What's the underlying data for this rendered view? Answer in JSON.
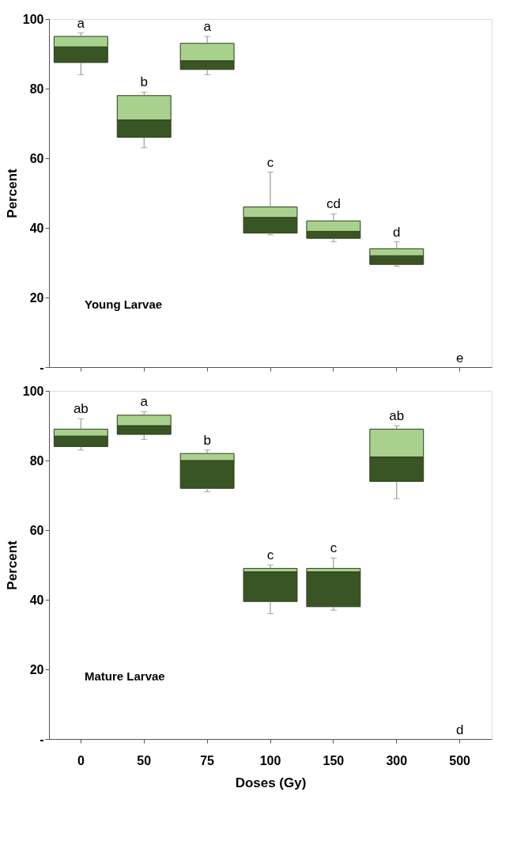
{
  "chart_data": [
    {
      "type": "box",
      "ylabel": "Percent",
      "categories": [
        "0",
        "50",
        "75",
        "100",
        "150",
        "300",
        "500"
      ],
      "boxes": [
        {
          "low": 84,
          "q1": 87.5,
          "median": 92,
          "q3": 95,
          "high": 96
        },
        {
          "low": 63,
          "q1": 66,
          "median": 71,
          "q3": 78,
          "high": 79
        },
        {
          "low": 84,
          "q1": 85.5,
          "median": 88,
          "q3": 93,
          "high": 95
        },
        {
          "low": 38,
          "q1": 38.5,
          "median": 43,
          "q3": 46,
          "high": 56
        },
        {
          "low": 36,
          "q1": 37,
          "median": 39,
          "q3": 42,
          "high": 44
        },
        {
          "low": 29,
          "q1": 29.5,
          "median": 32,
          "q3": 34,
          "high": 36
        },
        null
      ],
      "colors": [
        [
          "#3a5524",
          "#a9d18e"
        ],
        [
          "#3a5524",
          "#a9d18e"
        ],
        [
          "#3a5524",
          "#a9d18e"
        ],
        [
          "#3a5524",
          "#a9d18e"
        ],
        [
          "#3a5524",
          "#a9d18e"
        ],
        [
          "#3a5524",
          "#a9d18e"
        ],
        [
          "#3a5524",
          "#a9d18e"
        ]
      ],
      "ylim": [
        0,
        100
      ],
      "yticks": [
        {
          "value": 0,
          "label": "-"
        },
        20,
        40,
        60,
        80,
        100
      ],
      "tick_labels": "y",
      "grid": false,
      "annotations": [
        "Young Larvae",
        "e",
        {
          "text": "a",
          "x": "0",
          "y": 96
        },
        {
          "text": "b",
          "x": "50",
          "y": 79
        },
        {
          "text": "a",
          "x": "75",
          "y": 95
        },
        {
          "text": "c",
          "x": "100",
          "y": 56
        },
        {
          "text": "cd",
          "x": "150",
          "y": 44
        },
        {
          "text": "d",
          "x": "300",
          "y": 36
        }
      ]
    },
    {
      "type": "box",
      "ylabel": "Percent",
      "xlabel": "Doses (Gy)",
      "categories": [
        "0",
        "50",
        "75",
        "100",
        "150",
        "300",
        "500"
      ],
      "boxes": [
        {
          "low": 83,
          "q1": 84,
          "median": 87,
          "q3": 89,
          "high": 92
        },
        {
          "low": 86,
          "q1": 87.5,
          "median": 90,
          "q3": 93,
          "high": 94
        },
        {
          "low": 71,
          "q1": 72,
          "median": 80,
          "q3": 82,
          "high": 83
        },
        {
          "low": 36,
          "q1": 39.5,
          "median": 48,
          "q3": 49,
          "high": 50
        },
        {
          "low": 37,
          "q1": 38,
          "median": 48,
          "q3": 49,
          "high": 52
        },
        {
          "low": 69,
          "q1": 74,
          "median": 81,
          "q3": 89,
          "high": 90
        },
        null
      ],
      "colors": [
        [
          "#3a5524",
          "#a9d18e"
        ],
        [
          "#3a5524",
          "#a9d18e"
        ],
        [
          "#3a5524",
          "#a9d18e"
        ],
        [
          "#3a5524",
          "#a9d18e"
        ],
        [
          "#3a5524",
          "#a9d18e"
        ],
        [
          "#3a5524",
          "#a9d18e"
        ],
        [
          "#3a5524",
          "#a9d18e"
        ]
      ],
      "ylim": [
        0,
        100
      ],
      "yticks": [
        {
          "value": 0,
          "label": "-"
        },
        20,
        40,
        60,
        80,
        100
      ],
      "grid": false,
      "annotations": [
        "Mature Larvae",
        "d",
        {
          "text": "ab",
          "x": "0",
          "y": 92
        },
        {
          "text": "a",
          "x": "50",
          "y": 94
        },
        {
          "text": "b",
          "x": "75",
          "y": 83
        },
        {
          "text": "c",
          "x": "100",
          "y": 50
        },
        {
          "text": "c",
          "x": "150",
          "y": 52
        },
        {
          "text": "ab",
          "x": "300",
          "y": 90
        }
      ]
    }
  ]
}
